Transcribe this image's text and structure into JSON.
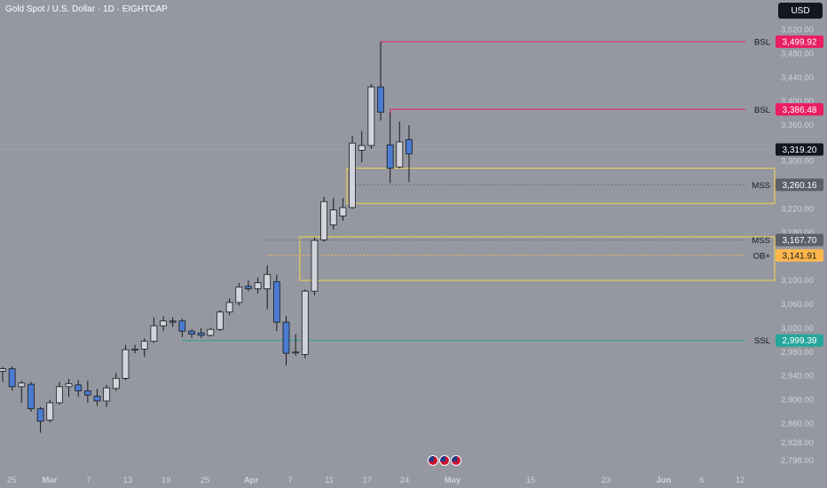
{
  "header": {
    "title": "Gold Spot / U.S. Dollar · 1D · EIGHTCAP",
    "currency": "USD"
  },
  "colors": {
    "background": "#9598a1",
    "bull_body": "#d1d4dc",
    "bear_body": "#4a7bd0",
    "wick": "#1a1a1a",
    "zone": "#f5d547",
    "bsl": "#e91e63",
    "ssl": "#26a69a",
    "mss": "#6e7280",
    "ob": "#ffb74d",
    "price_tag": "#131722"
  },
  "chart_data": {
    "type": "candlestick",
    "title": "Gold Spot / U.S. Dollar · 1D · EIGHTCAP",
    "yaxis": {
      "ticks": [
        2798,
        2828,
        2860,
        2900,
        2940,
        2980,
        3020,
        3060,
        3100,
        3140,
        3180,
        3220,
        3260,
        3300,
        3360,
        3400,
        3440,
        3480,
        3520
      ],
      "tick_labels": [
        "2,798.00",
        "2,828.00",
        "2,860.00",
        "2,900.00",
        "2,940.00",
        "2,980.00",
        "3,020.00",
        "3,060.00",
        "3,100.00",
        "3,140.00",
        "3,180.00",
        "3,220.00",
        "3,260.00",
        "3,300.00",
        "3,360.00",
        "3,400.00",
        "3,440.00",
        "3,480.00",
        "3,520.00"
      ],
      "range": [
        2782,
        3540
      ]
    },
    "xaxis": {
      "labels": [
        "25",
        "Mar",
        "7",
        "13",
        "19",
        "25",
        "Apr",
        "7",
        "11",
        "17",
        "24",
        "May",
        "15",
        "23",
        "Jun",
        "6",
        "12"
      ],
      "bold_labels": [
        "Mar",
        "Apr",
        "May",
        "Jun"
      ]
    },
    "candles": [
      {
        "o": 2948,
        "h": 2955,
        "l": 2930,
        "c": 2952
      },
      {
        "o": 2952,
        "h": 2956,
        "l": 2915,
        "c": 2922
      },
      {
        "o": 2922,
        "h": 2932,
        "l": 2895,
        "c": 2928
      },
      {
        "o": 2926,
        "h": 2930,
        "l": 2880,
        "c": 2885
      },
      {
        "o": 2885,
        "h": 2888,
        "l": 2845,
        "c": 2864
      },
      {
        "o": 2866,
        "h": 2900,
        "l": 2862,
        "c": 2895
      },
      {
        "o": 2895,
        "h": 2930,
        "l": 2892,
        "c": 2922
      },
      {
        "o": 2922,
        "h": 2935,
        "l": 2905,
        "c": 2927
      },
      {
        "o": 2925,
        "h": 2933,
        "l": 2905,
        "c": 2915
      },
      {
        "o": 2915,
        "h": 2932,
        "l": 2895,
        "c": 2908
      },
      {
        "o": 2906,
        "h": 2918,
        "l": 2890,
        "c": 2898
      },
      {
        "o": 2898,
        "h": 2925,
        "l": 2888,
        "c": 2920
      },
      {
        "o": 2919,
        "h": 2945,
        "l": 2915,
        "c": 2936
      },
      {
        "o": 2936,
        "h": 2992,
        "l": 2933,
        "c": 2984
      },
      {
        "o": 2984,
        "h": 2992,
        "l": 2978,
        "c": 2985
      },
      {
        "o": 2985,
        "h": 3003,
        "l": 2972,
        "c": 2998
      },
      {
        "o": 2998,
        "h": 3038,
        "l": 2995,
        "c": 3024
      },
      {
        "o": 3024,
        "h": 3040,
        "l": 3015,
        "c": 3032
      },
      {
        "o": 3032,
        "h": 3038,
        "l": 3022,
        "c": 3030
      },
      {
        "o": 3032,
        "h": 3036,
        "l": 3005,
        "c": 3015
      },
      {
        "o": 3015,
        "h": 3018,
        "l": 3004,
        "c": 3010
      },
      {
        "o": 3012,
        "h": 3020,
        "l": 3004,
        "c": 3008
      },
      {
        "o": 3008,
        "h": 3020,
        "l": 3006,
        "c": 3018
      },
      {
        "o": 3018,
        "h": 3050,
        "l": 3015,
        "c": 3047
      },
      {
        "o": 3047,
        "h": 3070,
        "l": 3042,
        "c": 3063
      },
      {
        "o": 3063,
        "h": 3096,
        "l": 3058,
        "c": 3089
      },
      {
        "o": 3090,
        "h": 3100,
        "l": 3082,
        "c": 3086
      },
      {
        "o": 3086,
        "h": 3105,
        "l": 3078,
        "c": 3096
      },
      {
        "o": 3086,
        "h": 3125,
        "l": 3052,
        "c": 3110
      },
      {
        "o": 3098,
        "h": 3110,
        "l": 3015,
        "c": 3030
      },
      {
        "o": 3030,
        "h": 3040,
        "l": 2958,
        "c": 2978
      },
      {
        "o": 2980,
        "h": 3010,
        "l": 2974,
        "c": 2980
      },
      {
        "o": 2976,
        "h": 3085,
        "l": 2970,
        "c": 3082
      },
      {
        "o": 3082,
        "h": 3172,
        "l": 3075,
        "c": 3167
      },
      {
        "o": 3168,
        "h": 3240,
        "l": 3165,
        "c": 3232
      },
      {
        "o": 3193,
        "h": 3238,
        "l": 3185,
        "c": 3218
      },
      {
        "o": 3208,
        "h": 3238,
        "l": 3200,
        "c": 3222
      },
      {
        "o": 3222,
        "h": 3342,
        "l": 3220,
        "c": 3330
      },
      {
        "o": 3318,
        "h": 3350,
        "l": 3298,
        "c": 3326
      },
      {
        "o": 3326,
        "h": 3429,
        "l": 3320,
        "c": 3424
      },
      {
        "o": 3424,
        "h": 3500,
        "l": 3368,
        "c": 3382
      },
      {
        "o": 3327,
        "h": 3381,
        "l": 3263,
        "c": 3288
      },
      {
        "o": 3290,
        "h": 3366,
        "l": 3288,
        "c": 3332
      },
      {
        "o": 3336,
        "h": 3360,
        "l": 3265,
        "c": 3312
      }
    ],
    "levels": [
      {
        "label": "BSL",
        "value": 3499.92,
        "tag": "3,499.92",
        "kind": "bsl",
        "start": 40
      },
      {
        "label": "BSL",
        "value": 3386.48,
        "tag": "3,386.48",
        "kind": "bsl",
        "start": 41
      },
      {
        "label": "MSS",
        "value": 3260.16,
        "tag": "3,260.16",
        "kind": "mss",
        "start": 37
      },
      {
        "label": "MSS",
        "value": 3167.7,
        "tag": "3,167.70",
        "kind": "mss",
        "start": 28
      },
      {
        "label": "OB+",
        "value": 3141.91,
        "tag": "3,141.91",
        "kind": "ob",
        "start": 28
      },
      {
        "label": "SSL",
        "value": 2999.39,
        "tag": "2,999.39",
        "kind": "ssl",
        "start": 19
      }
    ],
    "current_price": {
      "value": 3319.2,
      "tag": "3,319.20"
    },
    "zones": [
      {
        "top": 3288,
        "bottom": 3229,
        "start": 37
      },
      {
        "top": 3173,
        "bottom": 3100,
        "start": 32
      }
    ]
  }
}
